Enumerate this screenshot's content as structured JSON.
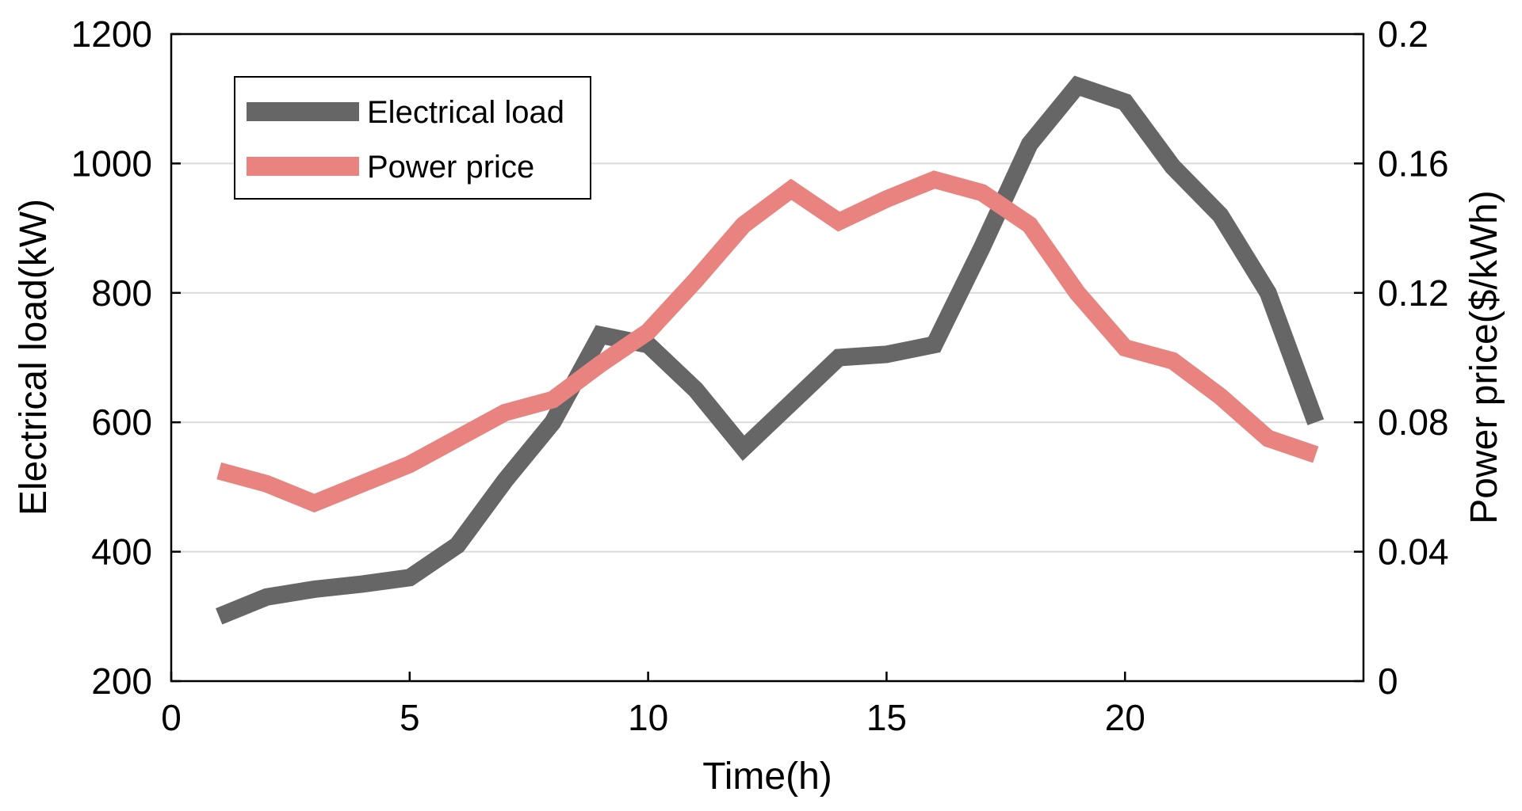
{
  "chart_data": {
    "type": "line",
    "title": "",
    "xlabel": "Time(h)",
    "ylabel_left": "Electrical load(kW)",
    "ylabel_right": "Power price($/kWh)",
    "xlim": [
      0,
      25
    ],
    "ylim_left": [
      200,
      1200
    ],
    "ylim_right": [
      0,
      0.2
    ],
    "x_ticks": [
      0,
      5,
      10,
      15,
      20
    ],
    "y_left_ticks": [
      200,
      400,
      600,
      800,
      1000,
      1200
    ],
    "y_right_ticks": [
      0,
      0.04,
      0.08,
      0.12,
      0.16,
      0.2
    ],
    "x_tick_labels": [
      "0",
      "5",
      "10",
      "15",
      "20"
    ],
    "y_left_tick_labels": [
      "200",
      "400",
      "600",
      "800",
      "1000",
      "1200"
    ],
    "y_right_tick_labels": [
      "0",
      "0.04",
      "0.08",
      "0.12",
      "0.16",
      "0.2"
    ],
    "grid": "horizontal",
    "legend_position": "top-left",
    "x": [
      1,
      2,
      3,
      4,
      5,
      6,
      7,
      8,
      9,
      10,
      11,
      12,
      13,
      14,
      15,
      16,
      17,
      18,
      19,
      20,
      21,
      22,
      23,
      24
    ],
    "series": [
      {
        "name": "Electrical load",
        "axis": "left",
        "color": "#666666",
        "values": [
          300,
          330,
          342,
          350,
          360,
          410,
          510,
          600,
          735,
          720,
          650,
          560,
          630,
          700,
          705,
          720,
          870,
          1030,
          1120,
          1095,
          995,
          920,
          800,
          600
        ]
      },
      {
        "name": "Power price",
        "axis": "right",
        "color": "#E8837F",
        "values": [
          0.065,
          0.061,
          0.055,
          0.061,
          0.067,
          0.075,
          0.083,
          0.087,
          0.098,
          0.108,
          0.124,
          0.141,
          0.152,
          0.142,
          0.149,
          0.155,
          0.151,
          0.141,
          0.12,
          0.103,
          0.099,
          0.088,
          0.075,
          0.07
        ]
      }
    ]
  }
}
